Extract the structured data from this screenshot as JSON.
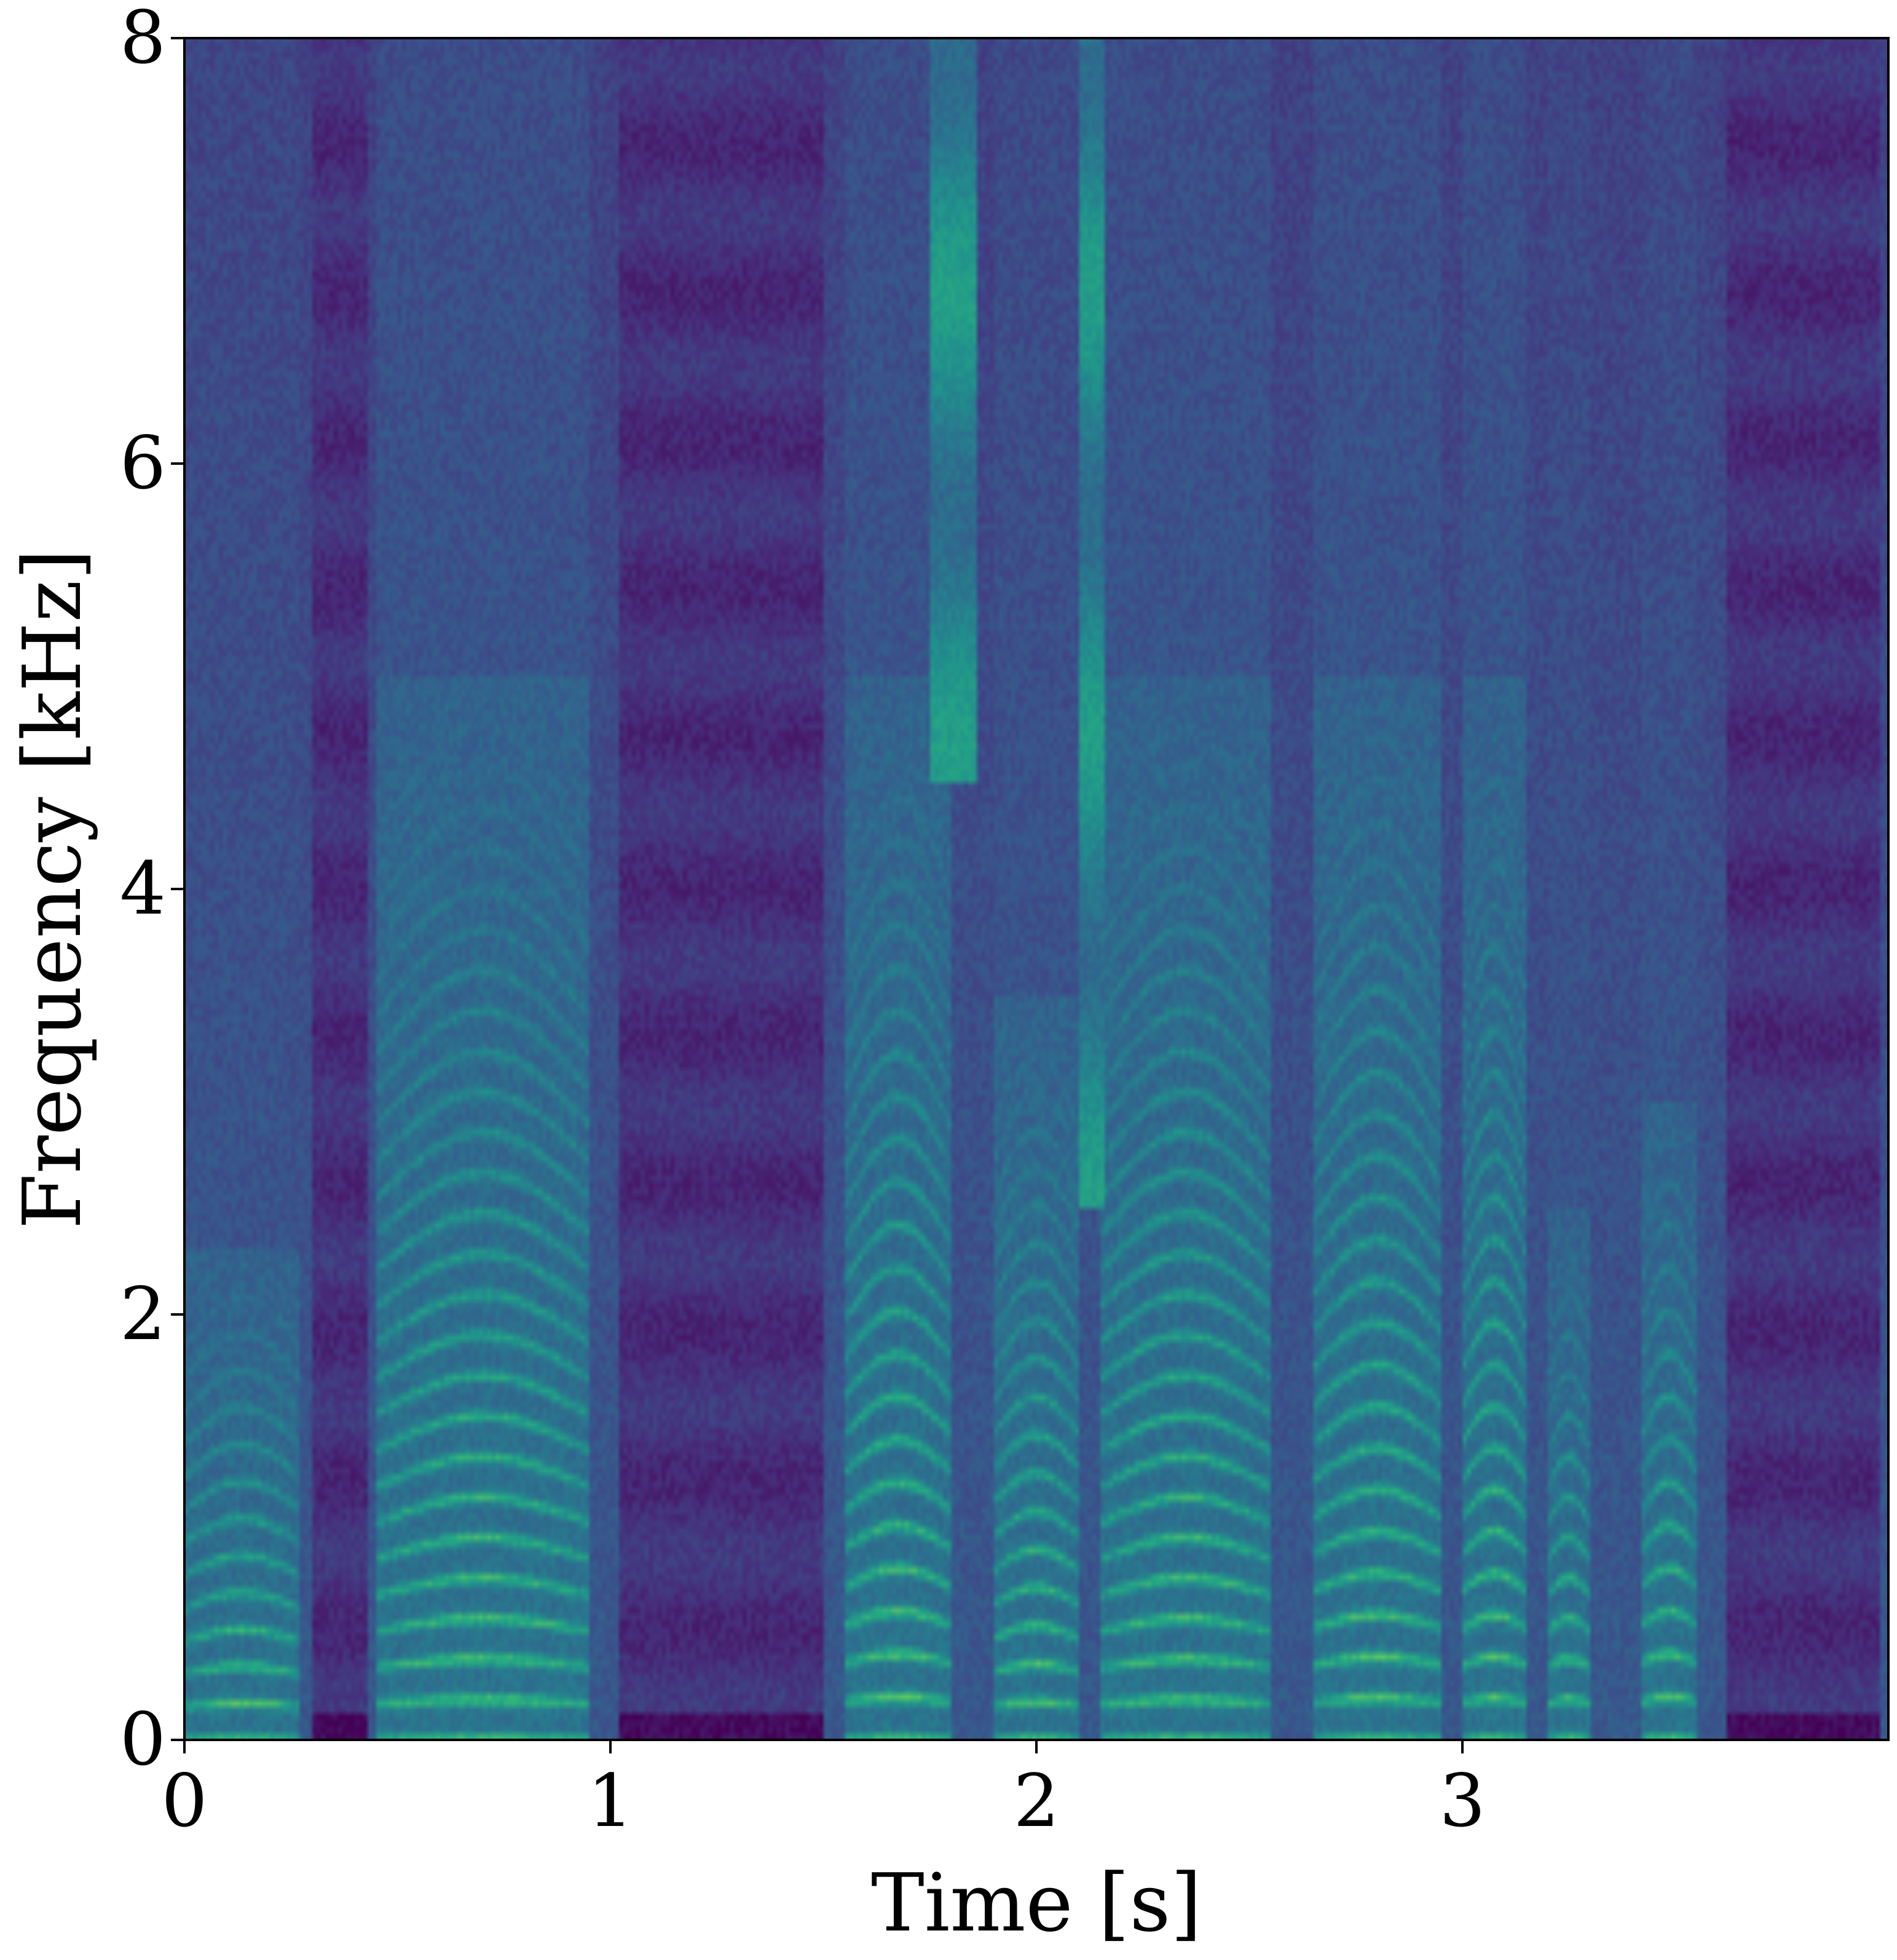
{
  "chart_data": {
    "type": "heatmap",
    "title": "",
    "xlabel": "Time [s]",
    "ylabel": "Frequency [kHz]",
    "xlim": [
      0,
      4.0
    ],
    "ylim": [
      0,
      8
    ],
    "x_ticks": [
      "0",
      "1",
      "2",
      "3"
    ],
    "y_ticks": [
      "0",
      "2",
      "4",
      "6",
      "8"
    ],
    "grid": false,
    "legend": "none",
    "colormap": [
      "#440154",
      "#472c7a",
      "#3b518b",
      "#2c718e",
      "#21908d",
      "#27ad81",
      "#5cc863",
      "#aadc32"
    ],
    "voiced_segments": [
      {
        "start": 0.0,
        "end": 0.27,
        "f0_khz": 0.155,
        "max_khz": 2.3
      },
      {
        "start": 0.45,
        "end": 0.95,
        "f0_khz": 0.17,
        "max_khz": 5.0
      },
      {
        "start": 1.55,
        "end": 1.8,
        "f0_khz": 0.18,
        "max_khz": 5.0
      },
      {
        "start": 1.9,
        "end": 2.1,
        "f0_khz": 0.16,
        "max_khz": 3.5
      },
      {
        "start": 2.15,
        "end": 2.55,
        "f0_khz": 0.17,
        "max_khz": 5.0
      },
      {
        "start": 2.65,
        "end": 2.95,
        "f0_khz": 0.175,
        "max_khz": 5.0
      },
      {
        "start": 3.0,
        "end": 3.15,
        "f0_khz": 0.175,
        "max_khz": 5.0
      },
      {
        "start": 3.2,
        "end": 3.3,
        "f0_khz": 0.17,
        "max_khz": 2.5
      },
      {
        "start": 3.42,
        "end": 3.55,
        "f0_khz": 0.18,
        "max_khz": 3.0
      }
    ],
    "silent_segments": [
      {
        "start": 0.3,
        "end": 0.43
      },
      {
        "start": 1.02,
        "end": 1.5
      },
      {
        "start": 3.62,
        "end": 3.98
      }
    ],
    "fricative_segments": [
      {
        "start": 1.75,
        "end": 1.86,
        "low_khz": 4.5,
        "high_khz": 8.0
      },
      {
        "start": 2.1,
        "end": 2.16,
        "low_khz": 2.5,
        "high_khz": 8.0
      }
    ]
  }
}
